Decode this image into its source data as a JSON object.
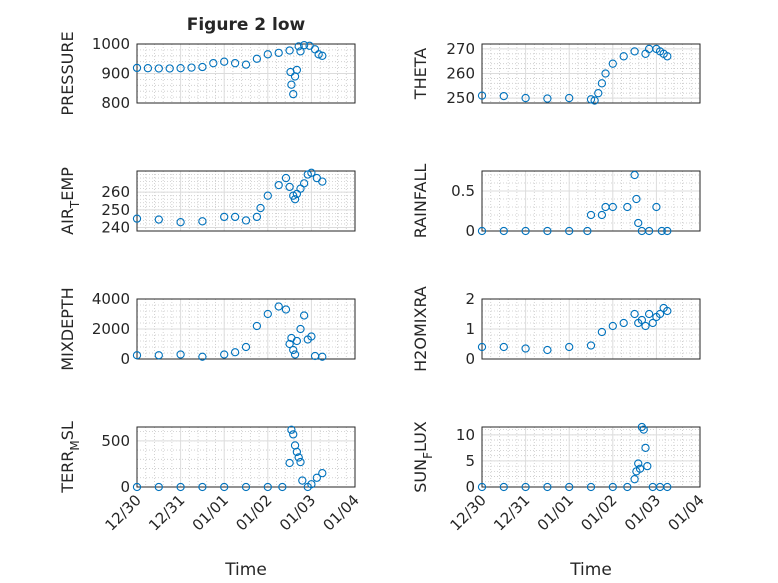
{
  "figure": {
    "title": "Figure 2 low",
    "xlabel": "Time",
    "time_ticks": [
      "12/30",
      "12/31",
      "01/01",
      "01/02",
      "01/03",
      "01/04"
    ]
  },
  "chart_data": [
    {
      "type": "scatter",
      "ylabel": "PRESSURE",
      "title": "Figure 2 low",
      "xlim": [
        "12/30",
        "01/04"
      ],
      "ylim": [
        800,
        1000
      ],
      "yticks": [
        800,
        900,
        1000
      ],
      "grid": true,
      "marker_color": "#0072bd",
      "points": [
        [
          "12/30 00:00",
          919
        ],
        [
          "12/30 06:00",
          918
        ],
        [
          "12/30 12:00",
          917
        ],
        [
          "12/30 18:00",
          917
        ],
        [
          "12/31 00:00",
          918
        ],
        [
          "12/31 06:00",
          920
        ],
        [
          "12/31 12:00",
          922
        ],
        [
          "12/31 18:00",
          935
        ],
        [
          "01/01 00:00",
          940
        ],
        [
          "01/01 06:00",
          935
        ],
        [
          "01/01 12:00",
          930
        ],
        [
          "01/01 18:00",
          950
        ],
        [
          "01/02 00:00",
          965
        ],
        [
          "01/02 06:00",
          970
        ],
        [
          "01/02 12:00",
          978
        ],
        [
          "01/02 12:30",
          905
        ],
        [
          "01/02 13:00",
          862
        ],
        [
          "01/02 14:00",
          830
        ],
        [
          "01/02 15:00",
          890
        ],
        [
          "01/02 16:00",
          912
        ],
        [
          "01/02 17:00",
          992
        ],
        [
          "01/02 18:00",
          975
        ],
        [
          "01/02 20:00",
          996
        ],
        [
          "01/02 23:00",
          994
        ],
        [
          "01/03 02:00",
          982
        ],
        [
          "01/03 04:00",
          965
        ],
        [
          "01/03 06:00",
          960
        ]
      ]
    },
    {
      "type": "scatter",
      "ylabel": "THETA",
      "xlim": [
        "12/30",
        "01/04"
      ],
      "ylim": [
        248,
        272
      ],
      "yticks": [
        250,
        260,
        270
      ],
      "grid": true,
      "marker_color": "#0072bd",
      "points": [
        [
          "12/30 00:00",
          251
        ],
        [
          "12/30 12:00",
          250.8
        ],
        [
          "12/31 00:00",
          250
        ],
        [
          "12/31 12:00",
          249.8
        ],
        [
          "01/01 00:00",
          250
        ],
        [
          "01/01 12:00",
          249.5
        ],
        [
          "01/01 14:00",
          249
        ],
        [
          "01/01 16:00",
          252
        ],
        [
          "01/01 18:00",
          256
        ],
        [
          "01/01 20:00",
          260
        ],
        [
          "01/02 00:00",
          264
        ],
        [
          "01/02 06:00",
          267
        ],
        [
          "01/02 12:00",
          269
        ],
        [
          "01/02 18:00",
          268
        ],
        [
          "01/02 20:00",
          270
        ],
        [
          "01/03 00:00",
          270
        ],
        [
          "01/03 02:00",
          269
        ],
        [
          "01/03 04:00",
          268
        ],
        [
          "01/03 06:00",
          267
        ]
      ]
    },
    {
      "type": "scatter",
      "ylabel_main": "AIR",
      "ylabel_sub": "T",
      "ylabel_tail": "EMP",
      "xlim": [
        "12/30",
        "01/04"
      ],
      "ylim": [
        238,
        272
      ],
      "yticks": [
        240,
        250,
        260
      ],
      "grid": true,
      "marker_color": "#0072bd",
      "points": [
        [
          "12/30 00:00",
          245
        ],
        [
          "12/30 12:00",
          244.5
        ],
        [
          "12/31 00:00",
          243
        ],
        [
          "12/31 12:00",
          243.5
        ],
        [
          "01/01 00:00",
          246
        ],
        [
          "01/01 06:00",
          246
        ],
        [
          "01/01 12:00",
          244
        ],
        [
          "01/01 18:00",
          246
        ],
        [
          "01/01 20:00",
          251
        ],
        [
          "01/02 00:00",
          258
        ],
        [
          "01/02 06:00",
          264
        ],
        [
          "01/02 10:00",
          268
        ],
        [
          "01/02 12:00",
          263
        ],
        [
          "01/02 14:00",
          258
        ],
        [
          "01/02 15:00",
          256
        ],
        [
          "01/02 16:00",
          259
        ],
        [
          "01/02 18:00",
          262
        ],
        [
          "01/02 20:00",
          265
        ],
        [
          "01/02 22:00",
          270
        ],
        [
          "01/03 00:00",
          271
        ],
        [
          "01/03 03:00",
          268
        ],
        [
          "01/03 06:00",
          266
        ]
      ]
    },
    {
      "type": "scatter",
      "ylabel": "RAINFALL",
      "xlim": [
        "12/30",
        "01/04"
      ],
      "ylim": [
        0,
        0.75
      ],
      "yticks": [
        0,
        0.5
      ],
      "grid": true,
      "marker_color": "#0072bd",
      "points": [
        [
          "12/30 00:00",
          0
        ],
        [
          "12/30 12:00",
          0
        ],
        [
          "12/31 00:00",
          0
        ],
        [
          "12/31 12:00",
          0
        ],
        [
          "01/01 00:00",
          0
        ],
        [
          "01/01 10:00",
          0
        ],
        [
          "01/01 12:00",
          0.2
        ],
        [
          "01/01 18:00",
          0.2
        ],
        [
          "01/01 20:00",
          0.3
        ],
        [
          "01/02 00:00",
          0.3
        ],
        [
          "01/02 08:00",
          0.3
        ],
        [
          "01/02 12:00",
          0.7
        ],
        [
          "01/02 13:00",
          0.4
        ],
        [
          "01/02 14:00",
          0.1
        ],
        [
          "01/02 16:00",
          0
        ],
        [
          "01/02 20:00",
          0
        ],
        [
          "01/03 00:00",
          0.3
        ],
        [
          "01/03 03:00",
          0
        ],
        [
          "01/03 06:00",
          0
        ]
      ]
    },
    {
      "type": "scatter",
      "ylabel": "MIXDEPTH",
      "xlim": [
        "12/30",
        "01/04"
      ],
      "ylim": [
        0,
        4000
      ],
      "yticks": [
        0,
        2000,
        4000
      ],
      "grid": true,
      "marker_color": "#0072bd",
      "points": [
        [
          "12/30 00:00",
          250
        ],
        [
          "12/30 12:00",
          250
        ],
        [
          "12/31 00:00",
          300
        ],
        [
          "12/31 12:00",
          150
        ],
        [
          "01/01 00:00",
          300
        ],
        [
          "01/01 06:00",
          450
        ],
        [
          "01/01 12:00",
          800
        ],
        [
          "01/01 18:00",
          2200
        ],
        [
          "01/02 00:00",
          3000
        ],
        [
          "01/02 06:00",
          3500
        ],
        [
          "01/02 10:00",
          3300
        ],
        [
          "01/02 12:00",
          1000
        ],
        [
          "01/02 13:00",
          1400
        ],
        [
          "01/02 14:00",
          600
        ],
        [
          "01/02 15:00",
          300
        ],
        [
          "01/02 16:00",
          1200
        ],
        [
          "01/02 18:00",
          2000
        ],
        [
          "01/02 20:00",
          2900
        ],
        [
          "01/02 22:00",
          1300
        ],
        [
          "01/03 00:00",
          1500
        ],
        [
          "01/03 02:00",
          200
        ],
        [
          "01/03 06:00",
          150
        ]
      ]
    },
    {
      "type": "scatter",
      "ylabel": "H2OMIXRA",
      "xlim": [
        "12/30",
        "01/04"
      ],
      "ylim": [
        0,
        2
      ],
      "yticks": [
        0,
        1,
        2
      ],
      "grid": true,
      "marker_color": "#0072bd",
      "points": [
        [
          "12/30 00:00",
          0.4
        ],
        [
          "12/30 12:00",
          0.4
        ],
        [
          "12/31 00:00",
          0.35
        ],
        [
          "12/31 12:00",
          0.3
        ],
        [
          "01/01 00:00",
          0.4
        ],
        [
          "01/01 12:00",
          0.45
        ],
        [
          "01/01 18:00",
          0.9
        ],
        [
          "01/02 00:00",
          1.1
        ],
        [
          "01/02 06:00",
          1.2
        ],
        [
          "01/02 12:00",
          1.5
        ],
        [
          "01/02 14:00",
          1.2
        ],
        [
          "01/02 16:00",
          1.3
        ],
        [
          "01/02 18:00",
          1.1
        ],
        [
          "01/02 20:00",
          1.5
        ],
        [
          "01/02 22:00",
          1.2
        ],
        [
          "01/03 00:00",
          1.4
        ],
        [
          "01/03 02:00",
          1.5
        ],
        [
          "01/03 04:00",
          1.7
        ],
        [
          "01/03 06:00",
          1.6
        ]
      ]
    },
    {
      "type": "scatter",
      "ylabel_main": "TERR",
      "ylabel_sub": "M",
      "ylabel_tail": "SL",
      "xlim": [
        "12/30",
        "01/04"
      ],
      "ylim": [
        0,
        650
      ],
      "yticks": [
        0,
        500
      ],
      "grid": true,
      "marker_color": "#0072bd",
      "points": [
        [
          "12/30 00:00",
          0
        ],
        [
          "12/30 12:00",
          0
        ],
        [
          "12/31 00:00",
          0
        ],
        [
          "12/31 12:00",
          0
        ],
        [
          "01/01 00:00",
          0
        ],
        [
          "01/01 12:00",
          0
        ],
        [
          "01/02 00:00",
          0
        ],
        [
          "01/02 08:00",
          0
        ],
        [
          "01/02 12:00",
          260
        ],
        [
          "01/02 13:00",
          620
        ],
        [
          "01/02 14:00",
          570
        ],
        [
          "01/02 15:00",
          450
        ],
        [
          "01/02 16:00",
          380
        ],
        [
          "01/02 17:00",
          320
        ],
        [
          "01/02 18:00",
          270
        ],
        [
          "01/02 19:00",
          70
        ],
        [
          "01/02 22:00",
          0
        ],
        [
          "01/03 00:00",
          30
        ],
        [
          "01/03 03:00",
          100
        ],
        [
          "01/03 06:00",
          150
        ]
      ]
    },
    {
      "type": "scatter",
      "ylabel_main": "SUN",
      "ylabel_sub": "F",
      "ylabel_tail": "LUX",
      "xlim": [
        "12/30",
        "01/04"
      ],
      "ylim": [
        0,
        11.5
      ],
      "yticks": [
        0,
        5,
        10
      ],
      "grid": true,
      "marker_color": "#0072bd",
      "points": [
        [
          "12/30 00:00",
          0
        ],
        [
          "12/30 12:00",
          0
        ],
        [
          "12/31 00:00",
          0
        ],
        [
          "12/31 12:00",
          0
        ],
        [
          "01/01 00:00",
          0
        ],
        [
          "01/01 12:00",
          0
        ],
        [
          "01/02 00:00",
          0
        ],
        [
          "01/02 08:00",
          0
        ],
        [
          "01/02 12:00",
          1.5
        ],
        [
          "01/02 13:00",
          3
        ],
        [
          "01/02 14:00",
          4.5
        ],
        [
          "01/02 15:00",
          3.5
        ],
        [
          "01/02 16:00",
          11.5
        ],
        [
          "01/02 17:00",
          11
        ],
        [
          "01/02 18:00",
          7.5
        ],
        [
          "01/02 19:00",
          4
        ],
        [
          "01/02 22:00",
          0
        ],
        [
          "01/03 02:00",
          0
        ],
        [
          "01/03 06:00",
          0
        ]
      ]
    }
  ]
}
